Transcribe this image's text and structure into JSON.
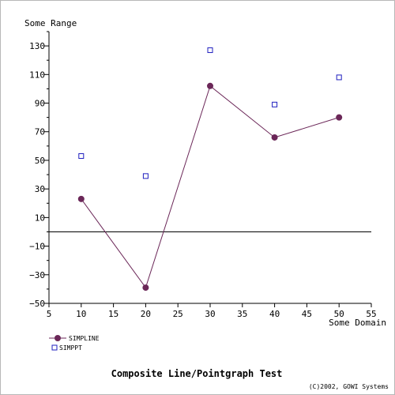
{
  "chart_data": {
    "type": "line",
    "title": "Composite Line/Pointgraph Test",
    "credit": "(C)2002, GOWI Systems",
    "xlabel": "Some Domain",
    "ylabel": "Some Range",
    "xlim": [
      5,
      55
    ],
    "ylim": [
      -50,
      140
    ],
    "x_ticks": [
      5,
      10,
      15,
      20,
      25,
      30,
      35,
      40,
      45,
      50,
      55
    ],
    "y_ticks": [
      -50,
      -30,
      -10,
      10,
      30,
      50,
      70,
      90,
      110,
      130
    ],
    "grid": false,
    "legend_position": "bottom-left",
    "series": [
      {
        "name": "SIMPLINE",
        "kind": "line",
        "color": "#6b2758",
        "marker": "filled-circle",
        "x": [
          10,
          20,
          30,
          40,
          50
        ],
        "y": [
          23,
          -39,
          102,
          66,
          80
        ]
      },
      {
        "name": "SIMPPT",
        "kind": "points",
        "color": "#1f1fbf",
        "marker": "hollow-square",
        "x": [
          10,
          20,
          30,
          40,
          50
        ],
        "y": [
          53,
          39,
          127,
          89,
          108
        ]
      }
    ]
  }
}
